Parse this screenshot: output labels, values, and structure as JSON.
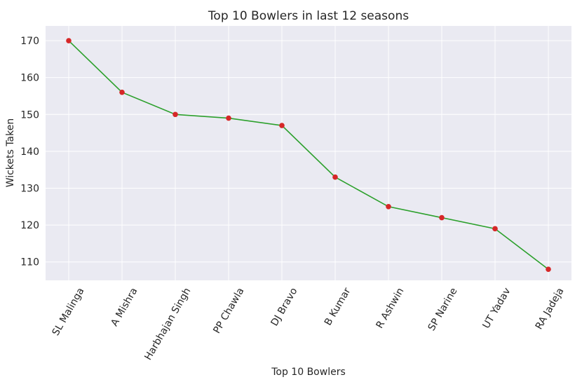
{
  "chart_data": {
    "type": "line",
    "title": "Top 10 Bowlers in last 12 seasons",
    "xlabel": "Top 10 Bowlers",
    "ylabel": "Wickets Taken",
    "categories": [
      "SL Malinga",
      "A Mishra",
      "Harbhajan Singh",
      "PP Chawla",
      "DJ Bravo",
      "B Kumar",
      "R Ashwin",
      "SP Narine",
      "UT Yadav",
      "RA Jadeja"
    ],
    "values": [
      170,
      156,
      150,
      149,
      147,
      133,
      125,
      122,
      119,
      108
    ],
    "ylim": [
      105,
      174
    ],
    "yticks": [
      110,
      120,
      130,
      140,
      150,
      160,
      170
    ],
    "grid": true,
    "colors": {
      "background": "#eaeaf2",
      "grid": "#ffffff",
      "line": "#2ca02c",
      "marker": "#d62728"
    }
  }
}
